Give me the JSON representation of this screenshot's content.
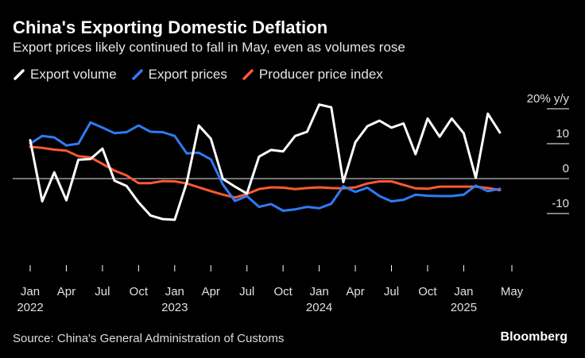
{
  "title": "China's Exporting Domestic Deflation",
  "subtitle": "Export prices likely continued to fall in May, even as volumes rose",
  "source": "Source: China's General Administration of Customs",
  "brand": "Bloomberg",
  "chart_data": {
    "type": "line",
    "ylabel": "20% y/y",
    "ylim": [
      -20,
      20
    ],
    "ytick_labels": [
      {
        "value": 20,
        "label": "20% y/y"
      },
      {
        "value": 10,
        "label": "10"
      },
      {
        "value": 0,
        "label": "0"
      },
      {
        "value": -10,
        "label": "-10"
      }
    ],
    "xticks": [
      {
        "month": 0,
        "label": "Jan",
        "year": "2022"
      },
      {
        "month": 3,
        "label": "Apr"
      },
      {
        "month": 6,
        "label": "Jul"
      },
      {
        "month": 9,
        "label": "Oct"
      },
      {
        "month": 12,
        "label": "Jan",
        "year": "2023"
      },
      {
        "month": 15,
        "label": "Apr"
      },
      {
        "month": 18,
        "label": "Jul"
      },
      {
        "month": 21,
        "label": "Oct"
      },
      {
        "month": 24,
        "label": "Jan",
        "year": "2024"
      },
      {
        "month": 27,
        "label": "Apr"
      },
      {
        "month": 30,
        "label": "Jul"
      },
      {
        "month": 33,
        "label": "Oct"
      },
      {
        "month": 36,
        "label": "Jan",
        "year": "2025"
      },
      {
        "month": 40,
        "label": "May"
      }
    ],
    "series": [
      {
        "name": "Export volume",
        "color": "#ffffff",
        "start_month": 0,
        "values": [
          11,
          -6.5,
          1.8,
          -6.2,
          5.4,
          5.6,
          8.6,
          -0.6,
          -2.1,
          -6.8,
          -10.6,
          -11.6,
          -11.8,
          -1.1,
          15.2,
          11.4,
          -0.1,
          -2.3,
          -4.3,
          6.3,
          8.2,
          7.8,
          12.2,
          13.4,
          21.2,
          20.4,
          -1.0,
          10.4,
          15.0,
          16.6,
          14.6,
          15.8,
          7.0,
          17.2,
          12.0,
          17.2,
          13.0,
          0.2,
          18.6,
          13.2
        ]
      },
      {
        "name": "Export prices",
        "color": "#2f7bf5",
        "start_month": 0,
        "values": [
          10,
          12.2,
          11.8,
          9.5,
          10,
          16.1,
          14.6,
          13,
          13.3,
          15.2,
          13.4,
          13.3,
          12.2,
          7.2,
          7.4,
          5.5,
          -1.7,
          -6.4,
          -5.0,
          -8.1,
          -7.3,
          -9.2,
          -8.8,
          -8.1,
          -8.5,
          -7.2,
          -2.2,
          -3.8,
          -2.6,
          -5.0,
          -6.5,
          -6.1,
          -4.6,
          -4.9,
          -5.0,
          -5.0,
          -4.6,
          -2.0,
          -3.6,
          -2.9
        ]
      },
      {
        "name": "Producer price index",
        "color": "#ff5a30",
        "start_month": 0,
        "values": [
          9.1,
          8.8,
          8.3,
          8.0,
          6.4,
          6.1,
          4.2,
          2.3,
          0.9,
          -1.3,
          -1.3,
          -0.7,
          -0.8,
          -1.4,
          -2.5,
          -3.6,
          -4.6,
          -5.4,
          -4.4,
          -3.0,
          -2.5,
          -2.6,
          -3.0,
          -2.7,
          -2.5,
          -2.7,
          -2.8,
          -2.5,
          -1.4,
          -0.8,
          -0.8,
          -1.8,
          -2.8,
          -2.9,
          -2.3,
          -2.3,
          -2.3,
          -2.3,
          -2.7,
          -3.3
        ]
      }
    ]
  }
}
